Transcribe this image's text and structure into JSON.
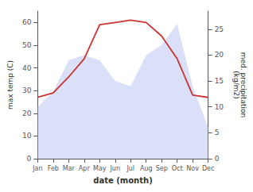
{
  "chart_data": {
    "type": "line",
    "categories": [
      "Jan",
      "Feb",
      "Mar",
      "Apr",
      "May",
      "Jun",
      "Jul",
      "Aug",
      "Sep",
      "Oct",
      "Nov",
      "Dec"
    ],
    "series": [
      {
        "type": "area",
        "axis": "y2",
        "color": "#aabbee",
        "values": [
          10,
          13,
          19,
          20,
          19,
          15,
          14,
          20,
          22,
          26,
          14,
          6
        ]
      },
      {
        "type": "line",
        "axis": "y",
        "color": "#cc3333",
        "values": [
          27,
          29,
          36,
          44,
          59,
          60,
          61,
          60,
          54,
          44,
          28,
          27
        ]
      }
    ],
    "xlabel": "date (month)",
    "ylabel": "max temp (C)",
    "y2label": "med. precipitation\n(kg/m2)",
    "ylim": [
      0,
      65
    ],
    "yticks": [
      0,
      10,
      20,
      30,
      40,
      50,
      60
    ],
    "y2lim": [
      0,
      28.5
    ],
    "y2ticks": [
      0,
      5,
      10,
      15,
      20,
      25
    ],
    "grid": false
  }
}
